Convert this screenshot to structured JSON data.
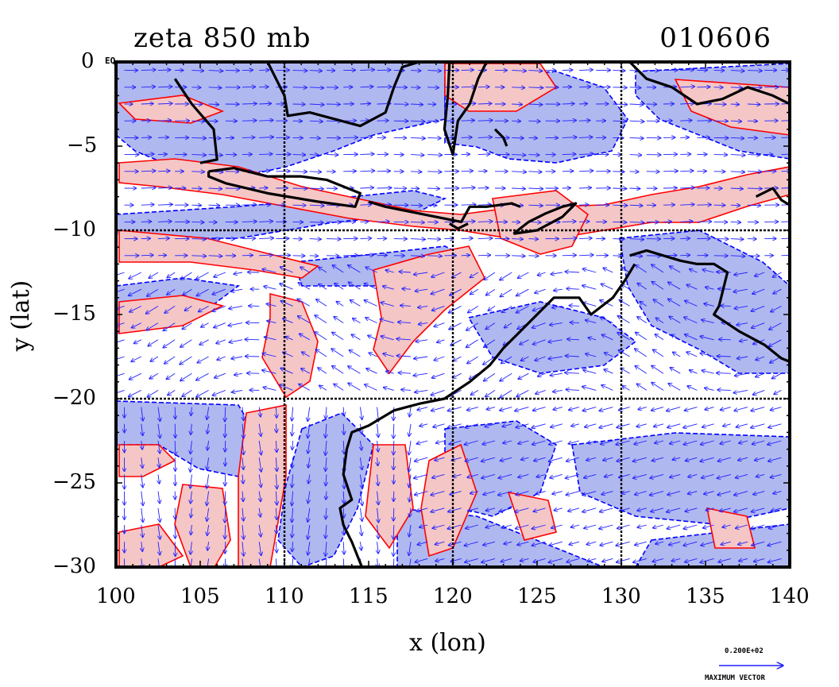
{
  "title": {
    "left": "zeta 850 mb",
    "right": "010606"
  },
  "axes": {
    "xlabel": "x (lon)",
    "ylabel": "y (lat)",
    "x_ticks": [
      "100",
      "105",
      "110",
      "115",
      "120",
      "125",
      "130",
      "135",
      "140"
    ],
    "y_ticks": [
      "0",
      "−5",
      "−10",
      "−15",
      "−20",
      "−25",
      "−30"
    ],
    "eq_label": "EQ",
    "xlim": [
      100,
      140
    ],
    "ylim": [
      -30,
      0
    ],
    "grid_lon": [
      110,
      120,
      130
    ],
    "grid_lat": [
      -10,
      -20
    ]
  },
  "legend": {
    "vector_value": "0.200E+02",
    "vector_label": "MAXIMUM VECTOR"
  },
  "colors": {
    "positive_fill": "#f4c6c6",
    "negative_fill": "#b0b8f0",
    "positive_contour": "#ff0000",
    "negative_contour": "#0000ff",
    "vector": "#2020ff",
    "coast": "#000000"
  },
  "map": {
    "coastlines": [
      [
        [
          109,
          0
        ],
        [
          109.5,
          -1
        ],
        [
          110,
          -2
        ],
        [
          110.2,
          -3.2
        ],
        [
          111.5,
          -3
        ],
        [
          113,
          -3.4
        ],
        [
          114.5,
          -3.8
        ],
        [
          116,
          -3
        ],
        [
          116.5,
          -1.5
        ],
        [
          117,
          -0.3
        ],
        [
          118,
          0
        ]
      ],
      [
        [
          103.5,
          -1
        ],
        [
          104.5,
          -2.5
        ],
        [
          105.8,
          -4
        ],
        [
          106,
          -5.8
        ],
        [
          105,
          -6
        ]
      ],
      [
        [
          105.5,
          -6.5
        ],
        [
          107,
          -6.3
        ],
        [
          109,
          -6.8
        ],
        [
          111,
          -6.8
        ],
        [
          112.5,
          -7
        ],
        [
          114.5,
          -7.8
        ],
        [
          114.2,
          -8.6
        ],
        [
          112,
          -8.3
        ],
        [
          109,
          -7.8
        ],
        [
          106.5,
          -7.2
        ],
        [
          105.5,
          -6.8
        ],
        [
          105.5,
          -6.5
        ]
      ],
      [
        [
          115,
          -8.3
        ],
        [
          116,
          -8.6
        ],
        [
          117.5,
          -8.9
        ],
        [
          119,
          -9.2
        ],
        [
          120.5,
          -9.5
        ],
        [
          121,
          -8.6
        ],
        [
          122,
          -8.6
        ],
        [
          123.5,
          -8.4
        ],
        [
          124,
          -8.6
        ]
      ],
      [
        [
          119.8,
          -9.6
        ],
        [
          120.3,
          -9.9
        ],
        [
          120.9,
          -9.6
        ]
      ],
      [
        [
          123.6,
          -10.2
        ],
        [
          124.5,
          -9.5
        ],
        [
          125.5,
          -9
        ],
        [
          126.5,
          -8.6
        ],
        [
          127.3,
          -8.4
        ],
        [
          126.5,
          -9.2
        ],
        [
          125,
          -10
        ],
        [
          123.6,
          -10.2
        ]
      ],
      [
        [
          119.8,
          0
        ],
        [
          119.7,
          -2
        ],
        [
          119.5,
          -4
        ],
        [
          120,
          -5.5
        ],
        [
          120.3,
          -3.5
        ],
        [
          121,
          -2.5
        ],
        [
          121.5,
          -1
        ],
        [
          122,
          0
        ]
      ],
      [
        [
          122.5,
          -4
        ],
        [
          123,
          -4.5
        ],
        [
          123.2,
          -5
        ]
      ],
      [
        [
          130.5,
          0
        ],
        [
          131.5,
          -1
        ],
        [
          133,
          -1.5
        ],
        [
          134.5,
          -2.5
        ],
        [
          136,
          -2.2
        ],
        [
          137.5,
          -1.5
        ],
        [
          139,
          -2
        ],
        [
          140,
          -2.5
        ]
      ],
      [
        [
          138,
          -8
        ],
        [
          139,
          -7.5
        ],
        [
          139.5,
          -8.2
        ],
        [
          140,
          -8.5
        ]
      ],
      [
        [
          130.5,
          -11.5
        ],
        [
          131.5,
          -11.2
        ],
        [
          132.5,
          -11.5
        ],
        [
          133.5,
          -11.8
        ],
        [
          134.5,
          -12
        ],
        [
          135.5,
          -12
        ],
        [
          136.3,
          -12.5
        ],
        [
          135.8,
          -14.5
        ],
        [
          135.5,
          -15
        ],
        [
          137,
          -16
        ],
        [
          138.5,
          -16.8
        ],
        [
          139.5,
          -17.6
        ],
        [
          140,
          -17.8
        ]
      ],
      [
        [
          130.8,
          -12
        ],
        [
          130.2,
          -13
        ],
        [
          129.5,
          -14
        ],
        [
          128.2,
          -15
        ],
        [
          127.5,
          -14
        ],
        [
          126,
          -14
        ],
        [
          125,
          -15
        ],
        [
          124,
          -16
        ],
        [
          123,
          -17
        ],
        [
          122.2,
          -18
        ],
        [
          121,
          -19
        ],
        [
          119.5,
          -20
        ],
        [
          118,
          -20.3
        ],
        [
          116.5,
          -20.7
        ],
        [
          115,
          -21.6
        ],
        [
          114,
          -22
        ],
        [
          113.7,
          -23
        ],
        [
          113.5,
          -24.5
        ],
        [
          114,
          -26
        ],
        [
          113.3,
          -26.5
        ],
        [
          113.5,
          -27.5
        ],
        [
          114,
          -28.5
        ],
        [
          114.6,
          -30
        ]
      ]
    ]
  }
}
